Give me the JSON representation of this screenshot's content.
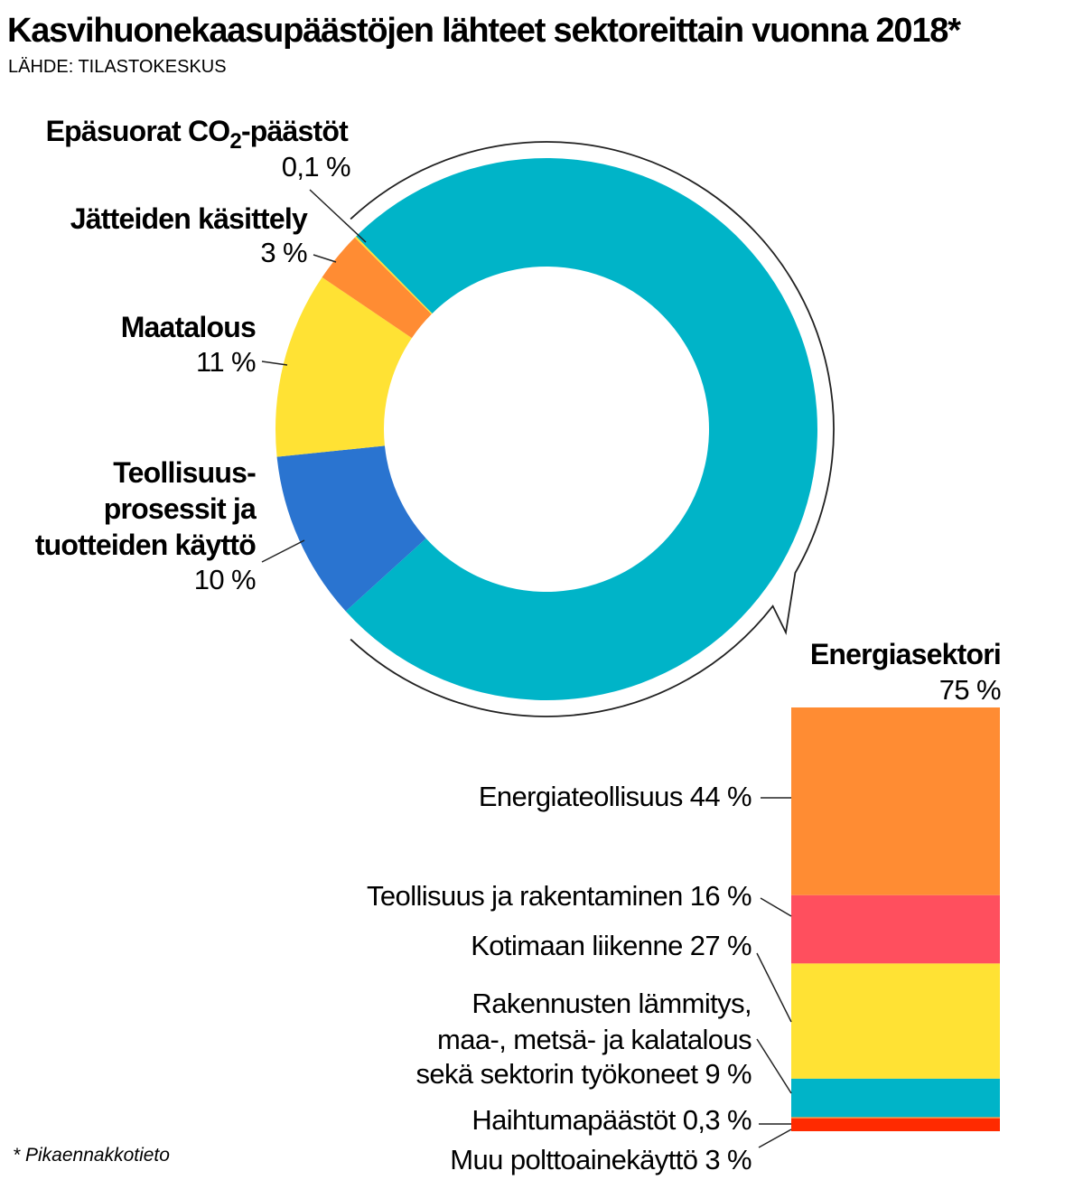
{
  "header": {
    "title": "Kasvihuonekaasupäästöjen lähteet sektoreittain vuonna 2018*",
    "source": "LÄHDE: TILASTOKESKUS"
  },
  "footnote": "* Pikaennakkotieto",
  "chart_data": [
    {
      "type": "pie",
      "style": "donut",
      "slices": [
        {
          "label": "Energiasektori",
          "value": 75,
          "value_label": "75 %",
          "color": "#00b4c8"
        },
        {
          "label": "Teollisuus­prosessit ja tuotteiden käyttö",
          "label_lines": [
            "Teollisuus-",
            "prosessit ja",
            "tuotteiden käyttö"
          ],
          "value": 10,
          "value_label": "10 %",
          "color": "#2a74d0"
        },
        {
          "label": "Maatalous",
          "value": 11,
          "value_label": "11 %",
          "color": "#ffe234"
        },
        {
          "label": "Jätteiden käsittely",
          "value": 3,
          "value_label": "3 %",
          "color": "#ff8c33"
        },
        {
          "label_main": "Epäsuorat CO",
          "label_sub": "2",
          "label_suffix": "-päästöt",
          "value": 0.1,
          "value_label": "0,1 %",
          "color": "#ffe234"
        }
      ]
    },
    {
      "type": "bar",
      "style": "stacked-100",
      "parent": "Energiasektori",
      "segments": [
        {
          "label_lines": [
            "Energiateollisuus 44 %"
          ],
          "value": 44,
          "color": "#ff8c33"
        },
        {
          "label_lines": [
            "Teollisuus ja rakentaminen 16 %"
          ],
          "value": 16,
          "color": "#ff4f5e"
        },
        {
          "label_lines": [
            "Kotimaan liikenne 27 %"
          ],
          "value": 27,
          "color": "#ffe234"
        },
        {
          "label_lines": [
            "Rakennusten lämmitys,",
            "maa-, metsä- ja kalatalous",
            "sekä sektorin työkoneet 9 %"
          ],
          "value": 9,
          "color": "#00b4c8"
        },
        {
          "label_lines": [
            "Haihtumapäästöt 0,3 %"
          ],
          "value": 0.3,
          "color": "#ff8c33"
        },
        {
          "label_lines": [
            "Muu polttoainekäyttö 3 %"
          ],
          "value": 3,
          "color": "#ff2a00"
        }
      ]
    }
  ]
}
